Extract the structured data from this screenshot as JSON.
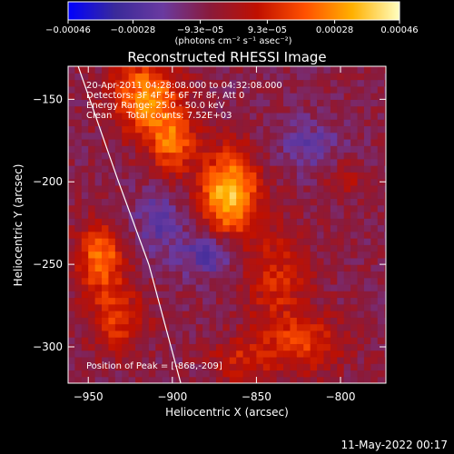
{
  "chart_data": {
    "type": "heatmap",
    "title": "Reconstructed RHESSI Image",
    "xlabel": "Heliocentric X (arcsec)",
    "ylabel": "Heliocentric Y (arcsec)",
    "xlim": [
      -962,
      -773
    ],
    "ylim": [
      -322,
      -130
    ],
    "x_ticks": [
      {
        "value": -950,
        "label": "−950"
      },
      {
        "value": -900,
        "label": "−900"
      },
      {
        "value": -850,
        "label": "−850"
      },
      {
        "value": -800,
        "label": "−800"
      }
    ],
    "y_ticks": [
      {
        "value": -150,
        "label": "−150"
      },
      {
        "value": -200,
        "label": "−200"
      },
      {
        "value": -250,
        "label": "−250"
      },
      {
        "value": -300,
        "label": "−300"
      }
    ],
    "colorbar": {
      "min": -0.00046,
      "max": 0.00046,
      "unit_label": "(photons cm⁻² s⁻¹ asec⁻²)",
      "ticks": [
        {
          "value": -0.00046,
          "label": "−0.00046"
        },
        {
          "value": -0.00028,
          "label": "−0.00028"
        },
        {
          "value": -9.3e-05,
          "label": "−9.3e−05"
        },
        {
          "value": 9.3e-05,
          "label": "9.3e−05"
        },
        {
          "value": 0.00028,
          "label": "0.00028"
        },
        {
          "value": 0.00046,
          "label": "0.00046"
        }
      ],
      "colors": [
        "#0000ff",
        "#3a2a9a",
        "#6a3aa0",
        "#8a1a3a",
        "#c01000",
        "#ff5000",
        "#ffb000",
        "#ffffc0"
      ]
    },
    "info_lines": [
      "20-Apr-2011 04:28:08.000 to 04:32:08.000",
      "Detectors: 3F 4F 5F 6F 7F 8F, Att 0",
      "Energy Range: 25.0 - 50.0 keV",
      "Clean     Total counts: 7.52E+03"
    ],
    "peak_label": "Position of Peak = [-868,-209]",
    "peak": {
      "x": -868,
      "y": -209
    },
    "sources": [
      {
        "x": -868,
        "y": -209,
        "peak": 0.00046,
        "sx": 12,
        "sy": 18
      },
      {
        "x": -918,
        "y": -150,
        "peak": 0.00036,
        "sx": 14,
        "sy": 16
      },
      {
        "x": -902,
        "y": -178,
        "peak": 0.00028,
        "sx": 10,
        "sy": 14
      },
      {
        "x": -945,
        "y": -248,
        "peak": 0.00032,
        "sx": 10,
        "sy": 14
      },
      {
        "x": -935,
        "y": -285,
        "peak": 0.00022,
        "sx": 12,
        "sy": 14
      },
      {
        "x": -840,
        "y": -260,
        "peak": 0.00018,
        "sx": 14,
        "sy": 22
      },
      {
        "x": -823,
        "y": -300,
        "peak": 0.00022,
        "sx": 16,
        "sy": 12
      },
      {
        "x": -800,
        "y": -200,
        "peak": 0.00012,
        "sx": 8,
        "sy": 8
      },
      {
        "x": -862,
        "y": -310,
        "peak": 0.00016,
        "sx": 14,
        "sy": 10
      },
      {
        "x": -880,
        "y": -245,
        "peak": -0.0002,
        "sx": 12,
        "sy": 10
      },
      {
        "x": -910,
        "y": -225,
        "peak": -0.00016,
        "sx": 10,
        "sy": 14
      },
      {
        "x": -820,
        "y": -180,
        "peak": -0.00012,
        "sx": 14,
        "sy": 12
      }
    ],
    "limb_curve": [
      [
        -956,
        -130
      ],
      [
        -932,
        -200
      ],
      [
        -914,
        -250
      ],
      [
        -895,
        -322
      ]
    ],
    "grid": false
  },
  "footer": {
    "timestamp": "11-May-2022 00:17"
  }
}
